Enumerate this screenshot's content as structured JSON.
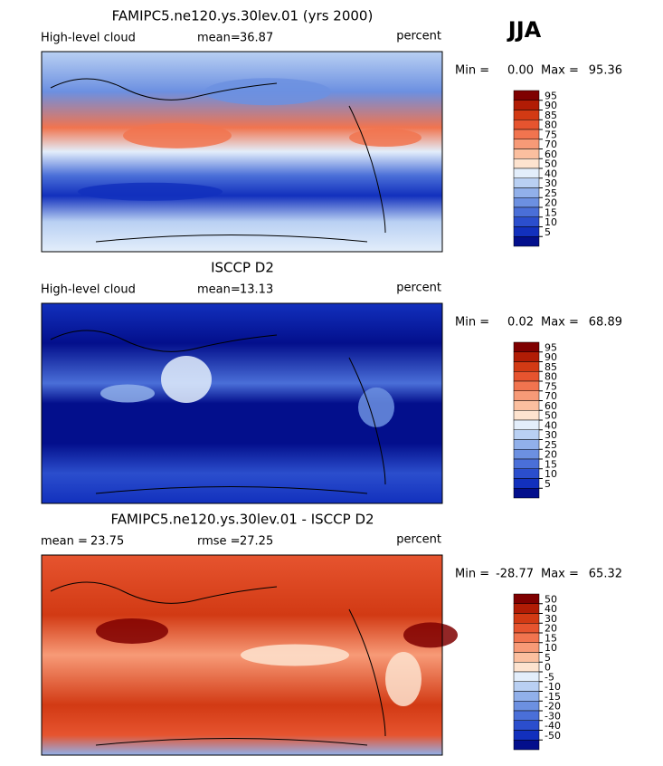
{
  "season": "JJA",
  "colorbar_colors": [
    "#7f0000",
    "#b11c05",
    "#d23a14",
    "#e6542f",
    "#f1744f",
    "#f79a77",
    "#fbbf9f",
    "#fde3cf",
    "#e3eefb",
    "#b9d0f3",
    "#91b0ea",
    "#6c90e1",
    "#4a6fd8",
    "#2b4ecd",
    "#1230bd",
    "#030f8c"
  ],
  "panels": [
    {
      "title": "FAMIPC5.ne120.ys.30lev.01 (yrs 2000)",
      "left_label": "High-level cloud",
      "stat1_label": "mean=",
      "stat1_value": "36.87",
      "units": "percent",
      "min_label": "Min =",
      "min_value": "0.00",
      "max_label": "Max =",
      "max_value": "95.36",
      "levels": [
        95,
        90,
        85,
        80,
        75,
        70,
        60,
        50,
        40,
        30,
        25,
        20,
        15,
        10,
        5
      ],
      "map_style": "model"
    },
    {
      "title": "ISCCP D2",
      "left_label": "High-level cloud",
      "stat1_label": "mean=",
      "stat1_value": "13.13",
      "units": "percent",
      "min_label": "Min =",
      "min_value": "0.02",
      "max_label": "Max =",
      "max_value": "68.89",
      "levels": [
        95,
        90,
        85,
        80,
        75,
        70,
        60,
        50,
        40,
        30,
        25,
        20,
        15,
        10,
        5
      ],
      "map_style": "obs"
    },
    {
      "title": "FAMIPC5.ne120.ys.30lev.01 - ISCCP D2",
      "left_label": "mean =",
      "left_value": "23.75",
      "stat1_label": "rmse =",
      "stat1_value": "27.25",
      "units": "percent",
      "min_label": "Min =",
      "min_value": "-28.77",
      "max_label": "Max =",
      "max_value": "65.32",
      "levels": [
        50,
        40,
        30,
        20,
        15,
        10,
        5,
        0,
        -5,
        -10,
        -15,
        -20,
        -30,
        -40,
        -50
      ],
      "map_style": "diff"
    }
  ]
}
